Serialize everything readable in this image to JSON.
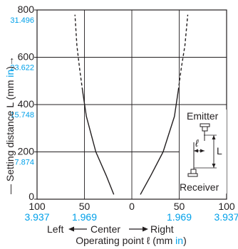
{
  "chart_data": {
    "type": "line",
    "title": "",
    "ylabel": {
      "prefix": "— Setting distance L (mm ",
      "unit": "in",
      "suffix": ")",
      "arrow": "→"
    },
    "xlabel": {
      "prefix": "Operating point ℓ (mm ",
      "unit": "in",
      "suffix": ")"
    },
    "direction_labels": {
      "left": "Left",
      "center": "Center",
      "right": "Right"
    },
    "xlim": [
      -100,
      100
    ],
    "ylim": [
      0,
      800
    ],
    "grid": true,
    "y_ticks": [
      {
        "value": 0,
        "mm": "0",
        "inch": ""
      },
      {
        "value": 200,
        "mm": "200",
        "inch": "7.874"
      },
      {
        "value": 400,
        "mm": "400",
        "inch": "15.748"
      },
      {
        "value": 600,
        "mm": "600",
        "inch": "23.622"
      },
      {
        "value": 800,
        "mm": "800",
        "inch": "31.496"
      }
    ],
    "x_ticks": [
      {
        "value": -100,
        "mm": "100",
        "inch": "3.937"
      },
      {
        "value": -50,
        "mm": "50",
        "inch": "1.969"
      },
      {
        "value": 0,
        "mm": "0",
        "inch": ""
      },
      {
        "value": 50,
        "mm": "50",
        "inch": "1.969"
      },
      {
        "value": 100,
        "mm": "100",
        "inch": "3.937"
      }
    ],
    "series": [
      {
        "side": "left",
        "solid": [
          [
            -19,
            20
          ],
          [
            -27,
            100
          ],
          [
            -38,
            200
          ],
          [
            -48,
            350
          ],
          [
            -52,
            460
          ]
        ],
        "dashed": [
          [
            -52,
            460
          ],
          [
            -55,
            550
          ],
          [
            -58,
            650
          ],
          [
            -60,
            780
          ]
        ]
      },
      {
        "side": "right",
        "solid": [
          [
            9,
            20
          ],
          [
            20,
            100
          ],
          [
            33,
            200
          ],
          [
            45,
            350
          ],
          [
            49,
            460
          ]
        ],
        "dashed": [
          [
            49,
            460
          ],
          [
            52,
            550
          ],
          [
            56,
            650
          ],
          [
            59,
            780
          ]
        ]
      }
    ],
    "inset": {
      "emitter_label": "Emitter",
      "receiver_label": "Receiver",
      "l_symbol": "ℓ",
      "L_symbol": "L"
    }
  }
}
